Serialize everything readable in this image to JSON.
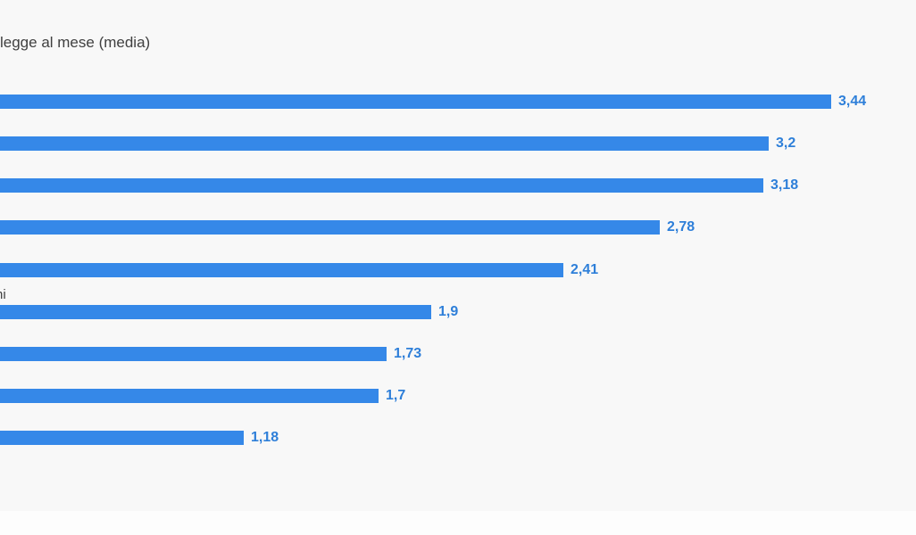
{
  "window": {
    "background": "#f8f8f8",
    "footer_background": "#fdfdfd"
  },
  "header": {
    "title_visible_text": "legge al mese (media)"
  },
  "chart_data": {
    "type": "bar",
    "orientation": "horizontal",
    "title": "legge al mese (media)",
    "categories_visible": [
      "",
      "",
      "",
      "",
      "",
      "ni",
      "",
      "",
      ""
    ],
    "values": [
      3.44,
      3.2,
      3.18,
      2.78,
      2.41,
      1.9,
      1.73,
      1.7,
      1.18
    ],
    "value_labels": [
      "3,44",
      "3,2",
      "3,18",
      "2,78",
      "2,41",
      "1,9",
      "1,73",
      "1,7",
      "1,18"
    ],
    "decimal_separator": ",",
    "colors": {
      "bar": "#3588e8",
      "value_label": "#2e7fd9",
      "text": "#3f3f3f"
    },
    "legend": false,
    "grid": false,
    "axis_labels_visible": false,
    "value_label_position": "end-of-bar"
  }
}
